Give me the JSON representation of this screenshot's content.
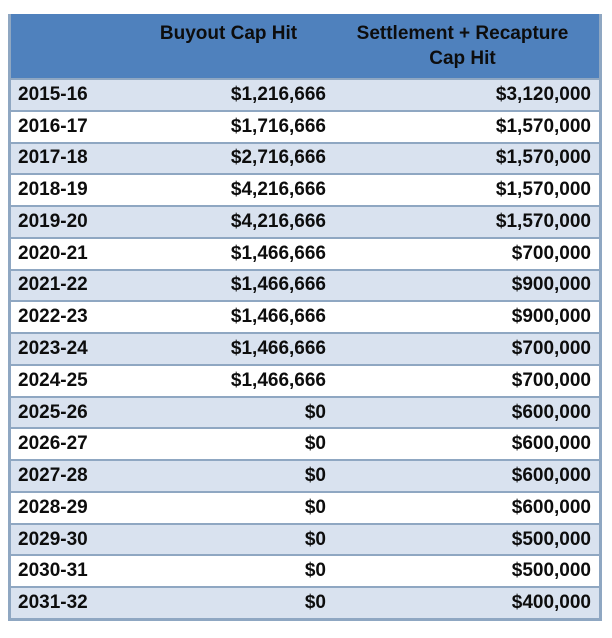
{
  "colors": {
    "header_bg": "#4F81BD",
    "stripe_bg": "#D9E2EF",
    "row_bg": "#FFFFFF",
    "border": "#8FA7C2",
    "header_divider": "#4C76A3",
    "text": "#0d0d0d"
  },
  "table": {
    "header": {
      "season": "",
      "buyout": "Buyout Cap Hit",
      "settlement": "Settlement + Recapture Cap Hit"
    },
    "rows": [
      {
        "year": "2015-16",
        "buyout": "$1,216,666",
        "settlement": "$3,120,000"
      },
      {
        "year": "2016-17",
        "buyout": "$1,716,666",
        "settlement": "$1,570,000"
      },
      {
        "year": "2017-18",
        "buyout": "$2,716,666",
        "settlement": "$1,570,000"
      },
      {
        "year": "2018-19",
        "buyout": "$4,216,666",
        "settlement": "$1,570,000"
      },
      {
        "year": "2019-20",
        "buyout": "$4,216,666",
        "settlement": "$1,570,000"
      },
      {
        "year": "2020-21",
        "buyout": "$1,466,666",
        "settlement": "$700,000"
      },
      {
        "year": "2021-22",
        "buyout": "$1,466,666",
        "settlement": "$900,000"
      },
      {
        "year": "2022-23",
        "buyout": "$1,466,666",
        "settlement": "$900,000"
      },
      {
        "year": "2023-24",
        "buyout": "$1,466,666",
        "settlement": "$700,000"
      },
      {
        "year": "2024-25",
        "buyout": "$1,466,666",
        "settlement": "$700,000"
      },
      {
        "year": "2025-26",
        "buyout": "$0",
        "settlement": "$600,000"
      },
      {
        "year": "2026-27",
        "buyout": "$0",
        "settlement": "$600,000"
      },
      {
        "year": "2027-28",
        "buyout": "$0",
        "settlement": "$600,000"
      },
      {
        "year": "2028-29",
        "buyout": "$0",
        "settlement": "$600,000"
      },
      {
        "year": "2029-30",
        "buyout": "$0",
        "settlement": "$500,000"
      },
      {
        "year": "2030-31",
        "buyout": "$0",
        "settlement": "$500,000"
      },
      {
        "year": "2031-32",
        "buyout": "$0",
        "settlement": "$400,000"
      }
    ]
  },
  "chart_data": {
    "type": "table",
    "title": "",
    "columns": [
      "",
      "Buyout Cap Hit",
      "Settlement + Recapture Cap Hit"
    ],
    "categories": [
      "2015-16",
      "2016-17",
      "2017-18",
      "2018-19",
      "2019-20",
      "2020-21",
      "2021-22",
      "2022-23",
      "2023-24",
      "2024-25",
      "2025-26",
      "2026-27",
      "2027-28",
      "2028-29",
      "2029-30",
      "2030-31",
      "2031-32"
    ],
    "series": [
      {
        "name": "Buyout Cap Hit",
        "values": [
          1216666,
          1716666,
          2716666,
          4216666,
          4216666,
          1466666,
          1466666,
          1466666,
          1466666,
          1466666,
          0,
          0,
          0,
          0,
          0,
          0,
          0
        ]
      },
      {
        "name": "Settlement + Recapture Cap Hit",
        "values": [
          3120000,
          1570000,
          1570000,
          1570000,
          1570000,
          700000,
          900000,
          900000,
          700000,
          700000,
          600000,
          600000,
          600000,
          600000,
          500000,
          500000,
          400000
        ]
      }
    ],
    "layout": {
      "striped_rows": true,
      "header_fill": "#4F81BD",
      "stripe_fill": "#D9E2EF",
      "values_alignment": "right",
      "first_column_alignment": "left"
    }
  }
}
